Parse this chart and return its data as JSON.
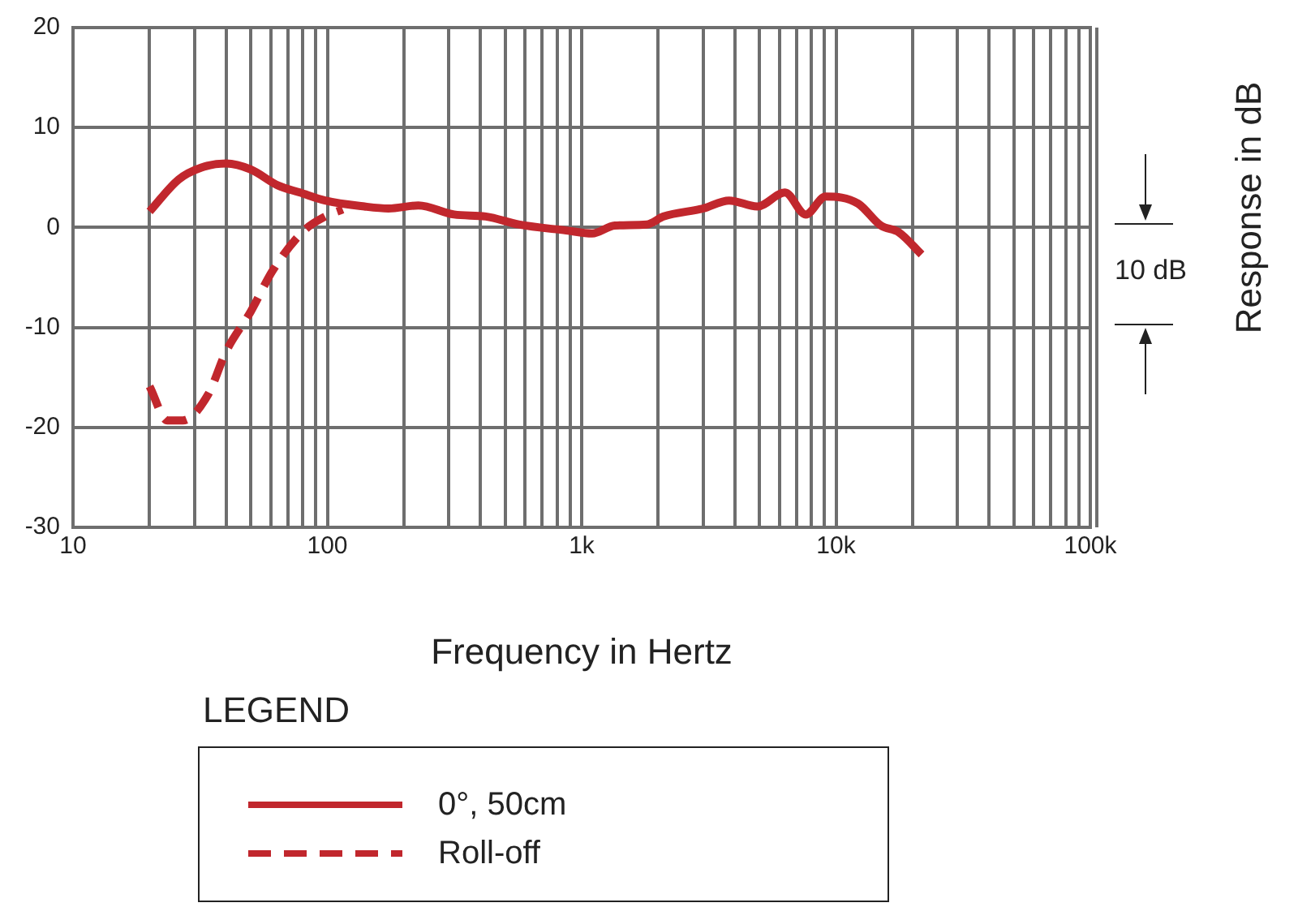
{
  "chart_data": {
    "type": "line",
    "xlabel": "Frequency in Hertz",
    "ylabel": "Response in dB",
    "legend_title": "LEGEND",
    "legend": "bottom",
    "log": "x",
    "grid": true,
    "marker": "none",
    "xlim": [
      10,
      100000
    ],
    "ylim": [
      -30,
      20
    ],
    "xticks": [
      10,
      {
        "value": 20,
        "label": null
      },
      {
        "value": 30,
        "label": null
      },
      {
        "value": 40,
        "label": null
      },
      {
        "value": 50,
        "label": null
      },
      {
        "value": 60,
        "label": null
      },
      {
        "value": 70,
        "label": null
      },
      {
        "value": 80,
        "label": null
      },
      {
        "value": 90,
        "label": null
      },
      100,
      {
        "value": 200,
        "label": null
      },
      {
        "value": 300,
        "label": null
      },
      {
        "value": 400,
        "label": null
      },
      {
        "value": 500,
        "label": null
      },
      {
        "value": 600,
        "label": null
      },
      {
        "value": 700,
        "label": null
      },
      {
        "value": 800,
        "label": null
      },
      {
        "value": 900,
        "label": null
      },
      {
        "value": 1000,
        "label": "1k"
      },
      {
        "value": 2000,
        "label": null
      },
      {
        "value": 3000,
        "label": null
      },
      {
        "value": 4000,
        "label": null
      },
      {
        "value": 5000,
        "label": null
      },
      {
        "value": 6000,
        "label": null
      },
      {
        "value": 7000,
        "label": null
      },
      {
        "value": 8000,
        "label": null
      },
      {
        "value": 9000,
        "label": null
      },
      {
        "value": 10000,
        "label": "10k"
      },
      {
        "value": 20000,
        "label": null
      },
      {
        "value": 30000,
        "label": null
      },
      {
        "value": 40000,
        "label": null
      },
      {
        "value": 50000,
        "label": null
      },
      {
        "value": 60000,
        "label": null
      },
      {
        "value": 70000,
        "label": null
      },
      {
        "value": 80000,
        "label": null
      },
      {
        "value": 90000,
        "label": null
      },
      {
        "value": 100000,
        "label": "100k"
      }
    ],
    "yticks": [
      -30,
      -20,
      -10,
      0,
      10,
      20
    ],
    "annotations": [
      "10 dB"
    ],
    "series": [
      {
        "name": "0°, 50cm",
        "color": "#c1272d",
        "line_style": "solid",
        "x": [
          20,
          26,
          32,
          40,
          50,
          64,
          78,
          98,
          140,
          174,
          228,
          315,
          420,
          565,
          870,
          1100,
          1350,
          1800,
          2100,
          3000,
          3800,
          4900,
          6300,
          7600,
          9100,
          12200,
          15000,
          17700,
          21700
        ],
        "values": [
          1.6,
          4.8,
          6,
          6.4,
          5.8,
          4.2,
          3.5,
          2.7,
          2.1,
          1.9,
          2.2,
          1.3,
          1.1,
          0.3,
          -0.3,
          -0.6,
          0.2,
          0.3,
          1.1,
          1.9,
          2.7,
          2.1,
          3.5,
          1.3,
          3.1,
          2.4,
          0.2,
          -0.5,
          -2.7
        ]
      },
      {
        "name": "Roll-off",
        "color": "#c1272d",
        "line_style": "dashed",
        "x": [
          20,
          23.5,
          27,
          34,
          40,
          50,
          61,
          81,
          98,
          115
        ],
        "values": [
          -15.9,
          -19.3,
          -19.3,
          -16.7,
          -12.4,
          -8.4,
          -4.3,
          -0.3,
          1.1,
          1.8
        ]
      }
    ]
  }
}
